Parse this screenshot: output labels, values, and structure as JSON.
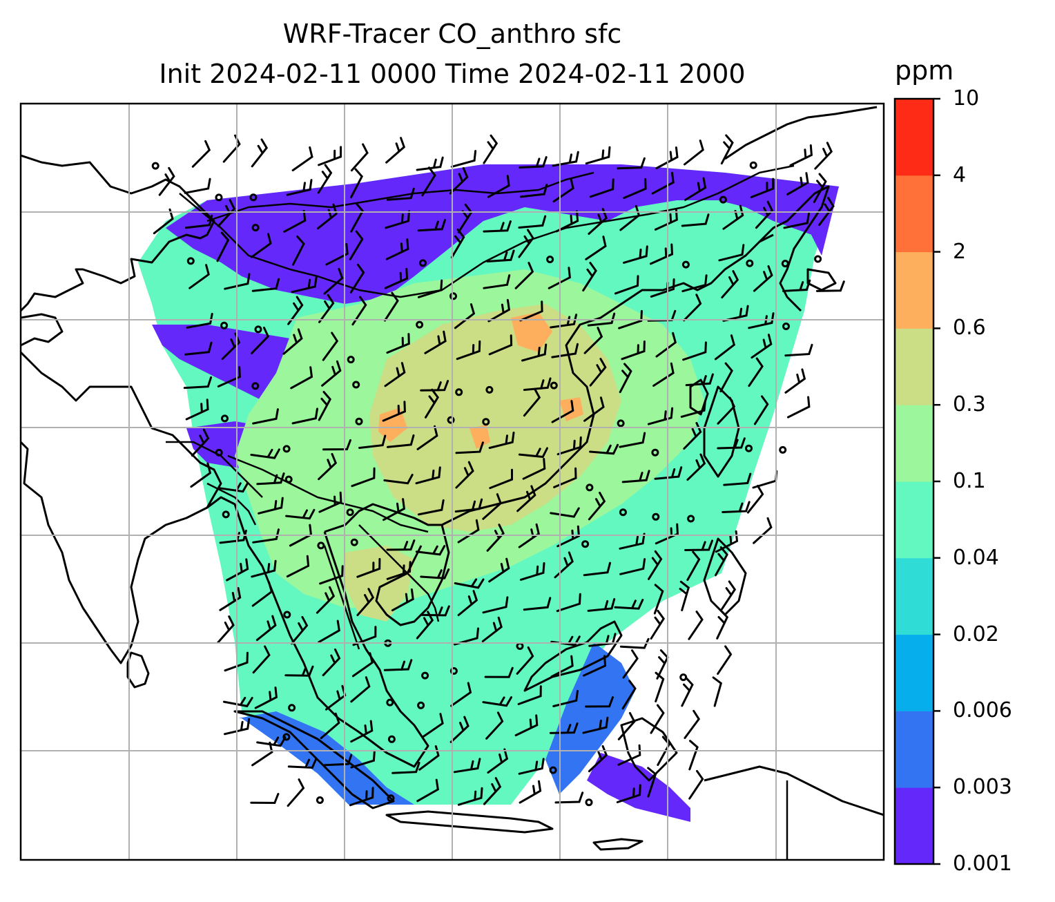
{
  "title": {
    "line1": "WRF-Tracer CO_anthro sfc",
    "line2": "Init 2024-02-11 0000 Time 2024-02-11 2000"
  },
  "colorbar": {
    "unit": "ppm",
    "tick_labels": [
      "0.001",
      "0.003",
      "0.006",
      "0.02",
      "0.04",
      "0.1",
      "0.3",
      "0.6",
      "2",
      "4",
      "10"
    ],
    "level_colors": [
      "#6528fa",
      "#3374f3",
      "#06aeec",
      "#2fdcd6",
      "#64f8c1",
      "#9bf69c",
      "#cbde86",
      "#fdaf5e",
      "#ff7138",
      "#fe2b17"
    ]
  },
  "map": {
    "layers": [
      "coastlines",
      "country-borders",
      "gridlines",
      "co-concentration-fill",
      "wind-barbs"
    ],
    "colors": {
      "low_purple": "#6528fa",
      "blue": "#3374f3",
      "teal": "#64f8c1",
      "green": "#9bf69c",
      "olive": "#cbde86",
      "orange": "#fdaf5e",
      "grid": "#b0b0b0"
    }
  }
}
